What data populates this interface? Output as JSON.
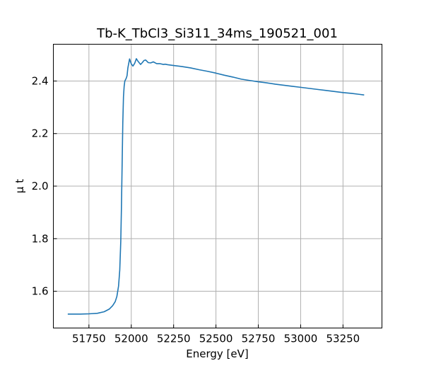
{
  "chart_data": {
    "type": "line",
    "title": "Tb-K_TbCl3_Si311_34ms_190521_001",
    "xlabel": "Energy [eV]",
    "ylabel": "μ t",
    "xlim": [
      51540,
      53480
    ],
    "ylim": [
      1.46,
      2.54
    ],
    "xticks": [
      51750,
      52000,
      52250,
      52500,
      52750,
      53000,
      53250
    ],
    "yticks": [
      1.6,
      1.8,
      2.0,
      2.2,
      2.4
    ],
    "ytick_labels": [
      "1.6",
      "1.8",
      "2.0",
      "2.2",
      "2.4"
    ],
    "grid": true,
    "series": [
      {
        "color": "#1f77b4",
        "x": [
          51625,
          51700,
          51750,
          51800,
          51840,
          51870,
          51890,
          51905,
          51915,
          51925,
          51932,
          51938,
          51942,
          51946,
          51950,
          51954,
          51958,
          51962,
          51966,
          51970,
          51975,
          51980,
          51990,
          52000,
          52010,
          52020,
          52030,
          52040,
          52055,
          52065,
          52075,
          52085,
          52100,
          52115,
          52130,
          52150,
          52170,
          52190,
          52200,
          52215,
          52250,
          52300,
          52350,
          52400,
          52450,
          52500,
          52550,
          52600,
          52650,
          52700,
          52750,
          52800,
          52850,
          52900,
          52950,
          53000,
          53050,
          53100,
          53150,
          53200,
          53250,
          53300,
          53375
        ],
        "y": [
          1.513,
          1.513,
          1.514,
          1.516,
          1.522,
          1.532,
          1.545,
          1.56,
          1.58,
          1.62,
          1.68,
          1.79,
          1.92,
          2.08,
          2.24,
          2.34,
          2.38,
          2.4,
          2.405,
          2.41,
          2.42,
          2.45,
          2.484,
          2.465,
          2.457,
          2.467,
          2.485,
          2.475,
          2.463,
          2.47,
          2.478,
          2.48,
          2.47,
          2.469,
          2.473,
          2.466,
          2.466,
          2.463,
          2.464,
          2.462,
          2.459,
          2.455,
          2.45,
          2.443,
          2.437,
          2.43,
          2.422,
          2.415,
          2.407,
          2.402,
          2.397,
          2.393,
          2.388,
          2.384,
          2.38,
          2.376,
          2.372,
          2.368,
          2.364,
          2.36,
          2.356,
          2.353,
          2.347
        ]
      }
    ]
  }
}
